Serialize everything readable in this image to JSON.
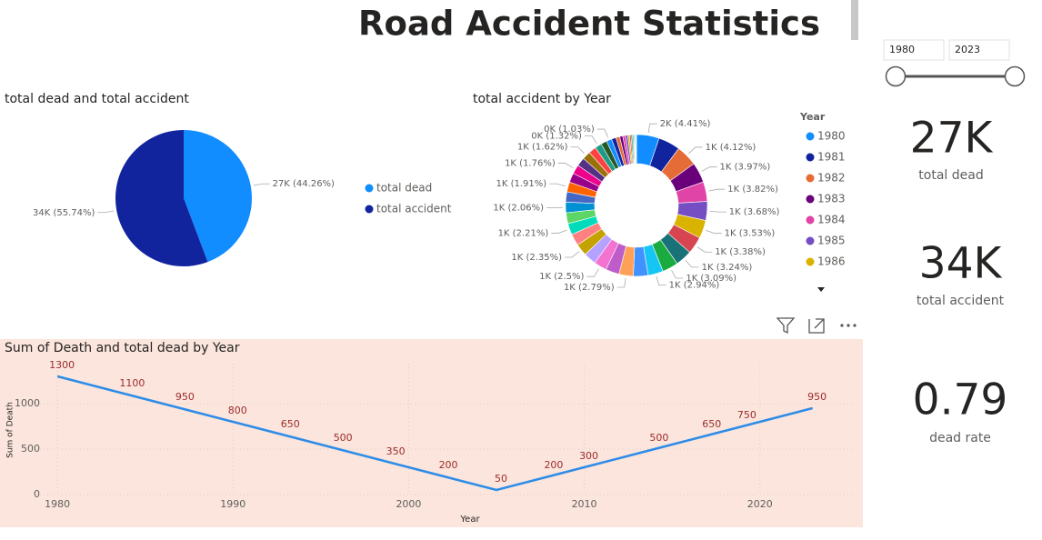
{
  "title": "Road Accident Statistics",
  "slicer": {
    "start": "1980",
    "end": "2023"
  },
  "cards": [
    {
      "value": "27K",
      "label": "total dead"
    },
    {
      "value": "34K",
      "label": "total accident"
    },
    {
      "value": "0.79",
      "label": "dead rate"
    }
  ],
  "chart_data": [
    {
      "type": "pie",
      "title": "total dead and total accident",
      "categories": [
        "total dead",
        "total accident"
      ],
      "values": [
        44.26,
        55.74
      ],
      "value_labels": [
        "27K (44.26%)",
        "34K (55.74%)"
      ],
      "colors": [
        "#118DFF",
        "#12239E"
      ]
    },
    {
      "type": "donut",
      "title": "total accident by Year",
      "legend_title": "Year",
      "categories": [
        "1980",
        "1981",
        "1982",
        "1983",
        "1984",
        "1985",
        "1986",
        null,
        null,
        null,
        null,
        null,
        null,
        null,
        null,
        null,
        null,
        null,
        null,
        null,
        null,
        null,
        null,
        null,
        null,
        null,
        null,
        null,
        null,
        null,
        null,
        null,
        null,
        null,
        null,
        null,
        null,
        null,
        null,
        null,
        null,
        null,
        null,
        null
      ],
      "values": [
        4.41,
        4.26,
        4.12,
        3.97,
        3.82,
        3.68,
        3.53,
        3.38,
        3.24,
        3.09,
        2.94,
        2.87,
        2.79,
        2.65,
        2.5,
        2.43,
        2.35,
        2.28,
        2.21,
        2.13,
        2.06,
        1.99,
        1.91,
        1.84,
        1.76,
        1.69,
        1.62,
        1.47,
        1.32,
        1.18,
        1.03,
        0.88,
        0.74,
        0.59,
        0.52,
        0.44,
        0.37,
        0.29,
        0.25,
        0.22,
        0.18,
        0.15,
        0.15,
        0.1
      ],
      "value_labels": [
        "2K (4.41%)",
        null,
        "1K (4.12%)",
        "1K (3.97%)",
        "1K (3.82%)",
        "1K (3.68%)",
        "1K (3.53%)",
        "1K (3.38%)",
        "1K (3.24%)",
        "1K (3.09%)",
        "1K (2.94%)",
        null,
        "1K (2.79%)",
        null,
        "1K (2.5%)",
        null,
        "1K (2.35%)",
        null,
        "1K (2.21%)",
        null,
        "1K (2.06%)",
        null,
        "1K (1.91%)",
        null,
        "1K (1.76%)",
        null,
        "1K (1.62%)",
        null,
        "0K (1.32%)",
        null,
        "0K (1.03%)",
        null,
        null,
        null,
        null,
        null,
        null,
        null,
        null,
        null,
        null,
        null,
        null,
        null
      ],
      "colors": [
        "#118DFF",
        "#12239E",
        "#E66C37",
        "#6B007B",
        "#E044A7",
        "#744EC2",
        "#D9B300",
        "#D64550",
        "#197278",
        "#1AAB40",
        "#15C6F4",
        "#4092FF",
        "#FFA058",
        "#BE5DC9",
        "#F472D0",
        "#B5A1FF",
        "#C4A200",
        "#FF8080",
        "#00DBBC",
        "#5BD667",
        "#0091D5",
        "#4668C5",
        "#FF6300",
        "#99008A",
        "#EC008C",
        "#533285",
        "#99700A",
        "#FF4141",
        "#1F9A85",
        "#255A26",
        "#118DFF",
        "#12239E",
        "#E66C37",
        "#6B007B",
        "#E044A7",
        "#744EC2",
        "#D9B300",
        "#D64550",
        "#197278",
        "#1AAB40",
        "#15C6F4",
        "#4092FF",
        "#FFA058",
        "#BE5DC9"
      ]
    },
    {
      "type": "line",
      "title": "Sum of Death and total dead by Year",
      "x_label": "Year",
      "y_label": "Sum of Death",
      "x": [
        1980,
        1984,
        1987,
        1990,
        1993,
        1996,
        1999,
        2002,
        2005,
        2008,
        2010,
        2014,
        2017,
        2019,
        2023
      ],
      "values": [
        1300,
        1100,
        950,
        800,
        650,
        500,
        350,
        200,
        50,
        200,
        300,
        500,
        650,
        750,
        950
      ],
      "color": "#2D8CE8",
      "xlim": [
        1978.8,
        2025.4
      ],
      "xticks": [
        1980,
        1990,
        2000,
        2010,
        2020
      ],
      "ylim": [
        0,
        1440
      ],
      "yticks": [
        0,
        500,
        1000
      ],
      "grid": true
    }
  ]
}
